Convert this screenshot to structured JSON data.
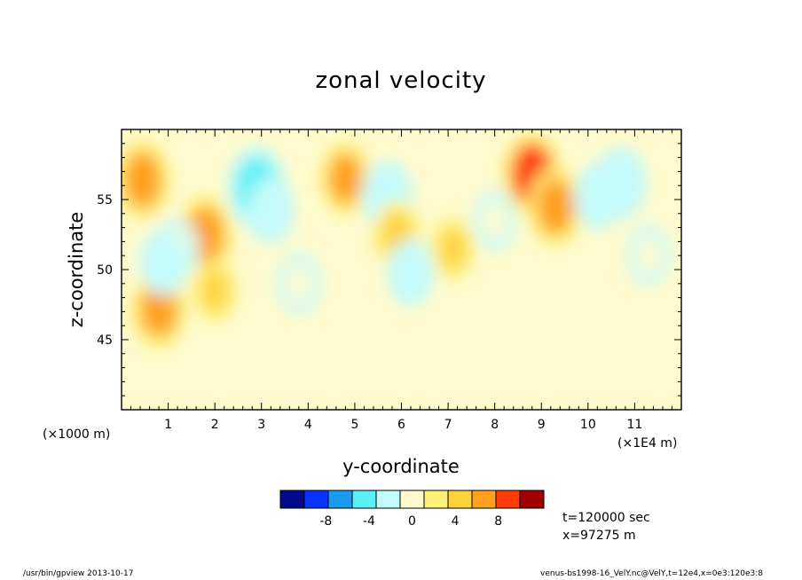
{
  "chart_data": {
    "type": "heatmap",
    "subtype": "filled-contour",
    "title": "zonal velocity",
    "xlabel": "y-coordinate",
    "ylabel": "z-coordinate",
    "x_unit_left": "(×1000 m)",
    "x_unit_right": "(×1E4 m)",
    "xlim": [
      0,
      12
    ],
    "ylim": [
      40,
      60
    ],
    "x_ticks": [
      1,
      2,
      3,
      4,
      5,
      6,
      7,
      8,
      9,
      10,
      11
    ],
    "y_ticks": [
      45,
      50,
      55
    ],
    "colorbar": {
      "levels": [
        -10,
        -8,
        -6,
        -4,
        -2,
        0,
        2,
        4,
        6,
        8,
        10
      ],
      "labels": [
        "-8",
        "-4",
        "0",
        "4",
        "8"
      ],
      "label_values": [
        -8,
        -4,
        0,
        4,
        8
      ],
      "colors": [
        "#000a8c",
        "#0a32ff",
        "#199bf0",
        "#5af0f5",
        "#c3fafa",
        "#fffacd",
        "#fff078",
        "#ffd23c",
        "#ffa01e",
        "#ff3c0a",
        "#a00000"
      ]
    },
    "features": [
      {
        "x": 0.45,
        "y": 56.4,
        "value": 5
      },
      {
        "x": 1.8,
        "y": 52.5,
        "value": 5
      },
      {
        "x": 0.8,
        "y": 47.2,
        "value": 5
      },
      {
        "x": 2.9,
        "y": 55.8,
        "value": -6
      },
      {
        "x": 3.2,
        "y": 54.2,
        "value": -3
      },
      {
        "x": 4.8,
        "y": 56.5,
        "value": 4
      },
      {
        "x": 5.7,
        "y": 55.2,
        "value": -4
      },
      {
        "x": 5.9,
        "y": 52.5,
        "value": 3
      },
      {
        "x": 6.2,
        "y": 49.8,
        "value": -3
      },
      {
        "x": 7.1,
        "y": 51.5,
        "value": 2
      },
      {
        "x": 8.8,
        "y": 56.8,
        "value": 6
      },
      {
        "x": 9.3,
        "y": 54.5,
        "value": 5
      },
      {
        "x": 10.7,
        "y": 56.2,
        "value": -4
      },
      {
        "x": 10.2,
        "y": 55.2,
        "value": -3
      },
      {
        "x": 11.3,
        "y": 51.0,
        "value": -2
      },
      {
        "x": 1.2,
        "y": 51.5,
        "value": -2
      },
      {
        "x": 0.9,
        "y": 50.5,
        "value": -3
      },
      {
        "x": 3.8,
        "y": 49.0,
        "value": -2
      },
      {
        "x": 2.0,
        "y": 48.5,
        "value": 2
      },
      {
        "x": 8.0,
        "y": 53.5,
        "value": -2
      }
    ]
  },
  "info": {
    "time": "t=120000 sec",
    "position": "x=97275 m"
  },
  "footer": {
    "left": "/usr/bin/gpview  2013-10-17",
    "right": "venus-bs1998-16_VelY.nc@VelY,t=12e4,x=0e3:120e3:8"
  }
}
